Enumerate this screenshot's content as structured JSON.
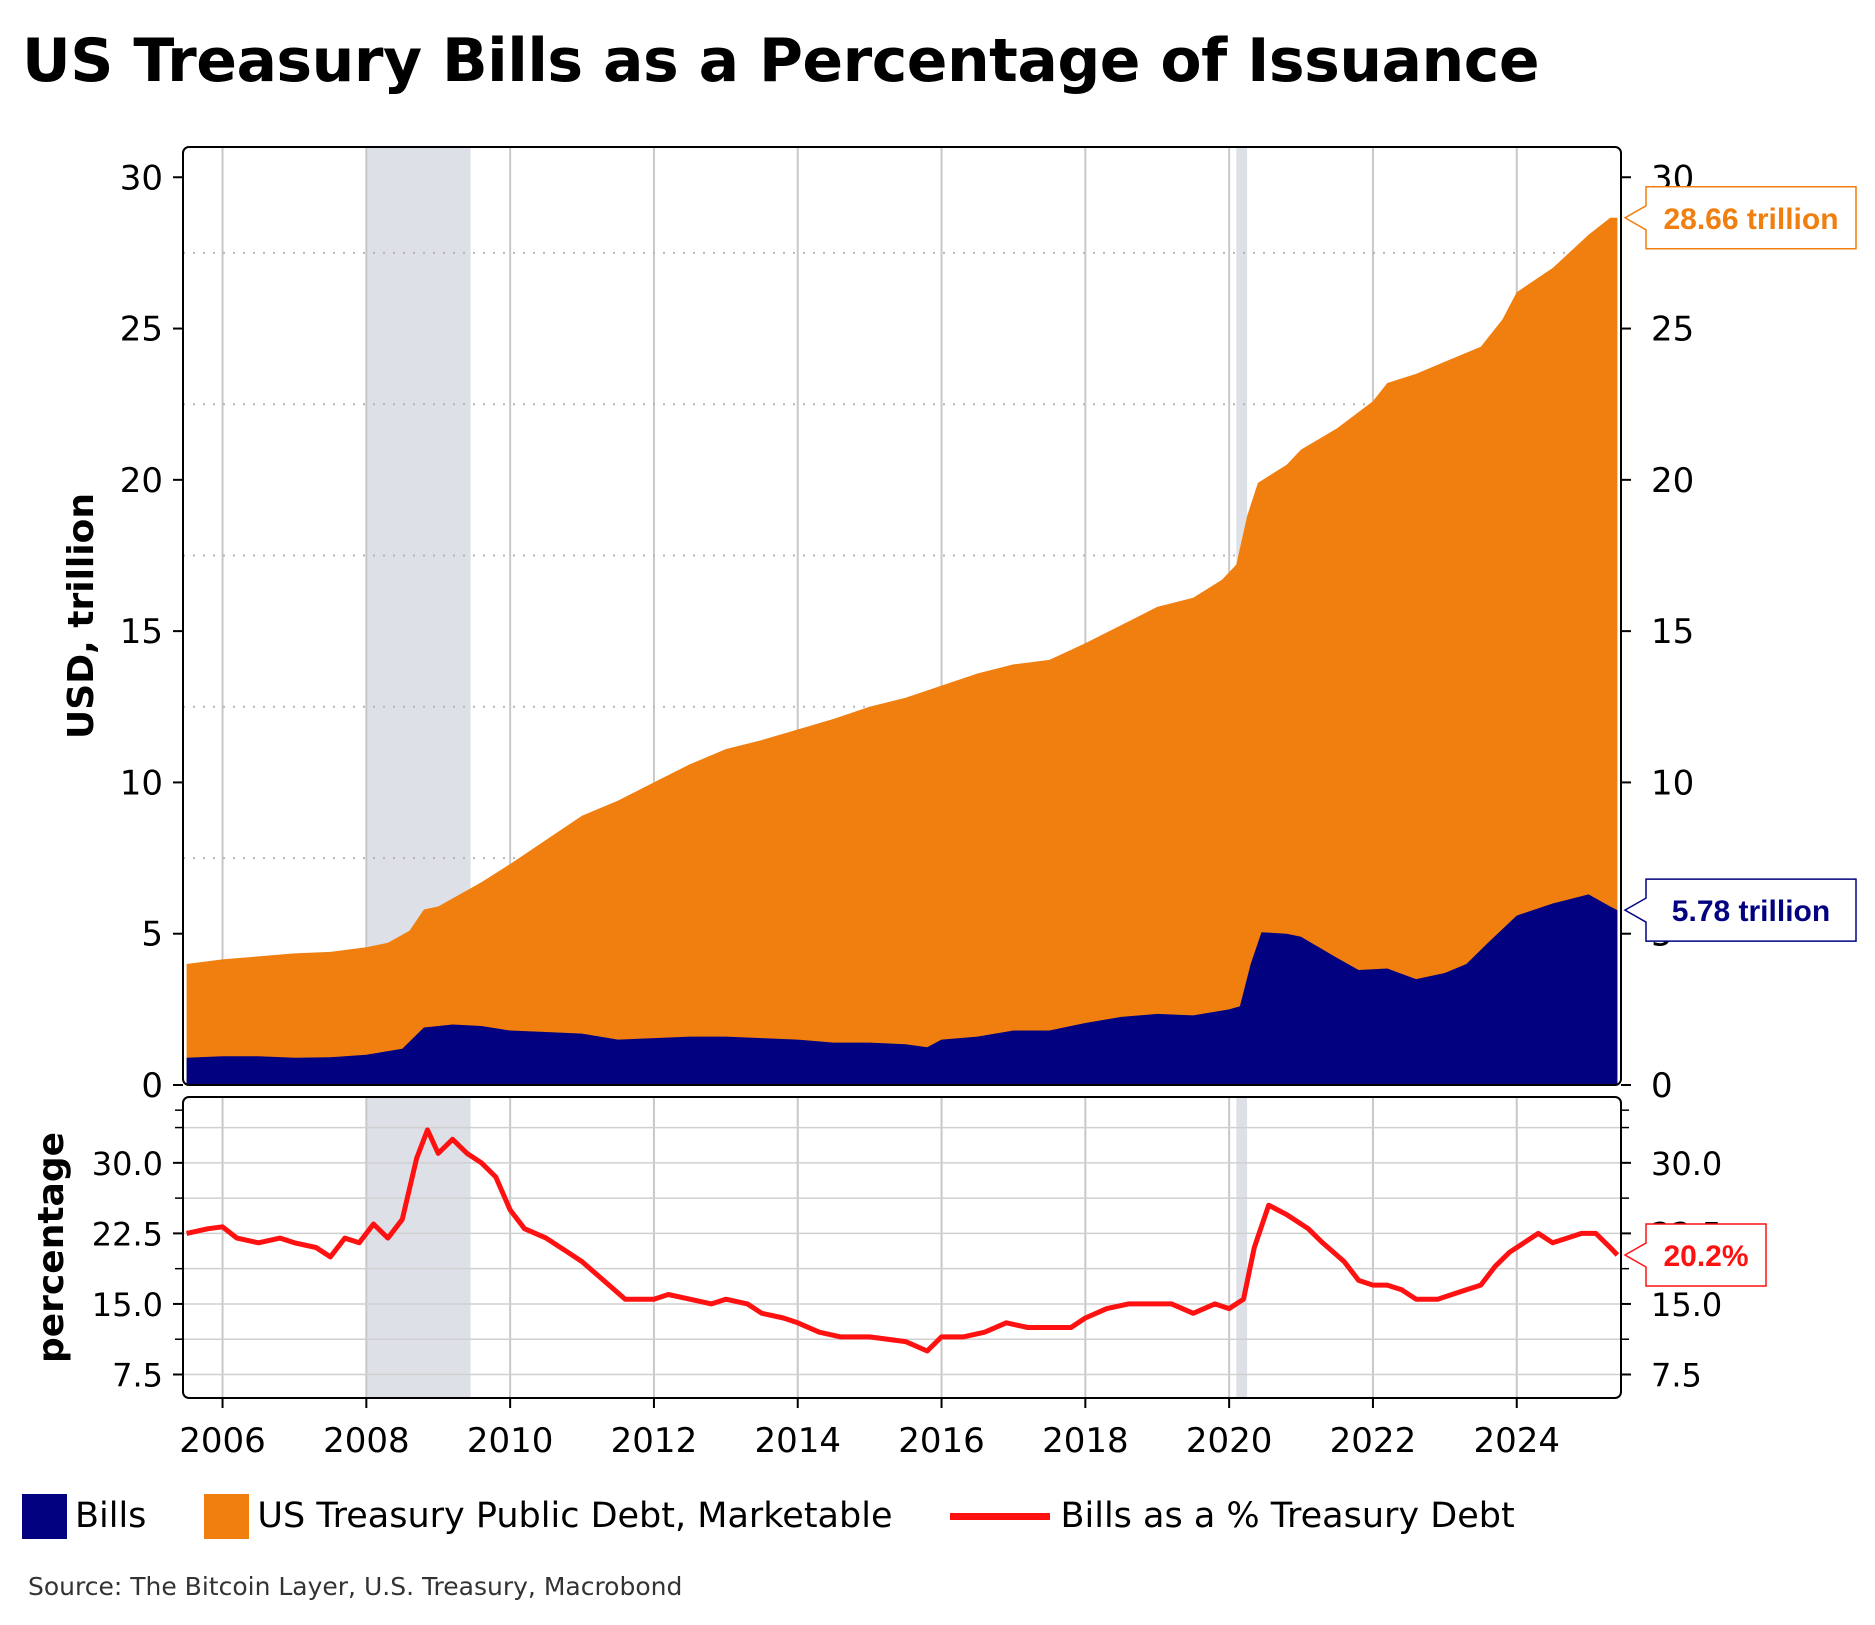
{
  "title": "US Treasury Bills as a Percentage of Issuance",
  "source": "Source: The Bitcoin Layer, U.S. Treasury, Macrobond",
  "colors": {
    "bills": "#020280",
    "debt": "#f07f0f",
    "pct": "#ff1111",
    "recession": "#dde0e6"
  },
  "legend": [
    {
      "label": "Bills",
      "kind": "box",
      "color": "#020280"
    },
    {
      "label": "US Treasury Public Debt, Marketable",
      "kind": "box",
      "color": "#f07f0f"
    },
    {
      "label": "Bills as a % Treasury Debt",
      "kind": "line",
      "color": "#ff1111"
    }
  ],
  "chart_data": [
    {
      "type": "area",
      "ylabel": "USD, trillion",
      "ylim": [
        0,
        31
      ],
      "yticks": [
        0,
        5,
        10,
        15,
        20,
        25,
        30
      ],
      "xlim": [
        2005.45,
        2025.45
      ],
      "xticks": [
        "2006",
        "2008",
        "2010",
        "2012",
        "2014",
        "2016",
        "2018",
        "2020",
        "2022",
        "2024"
      ],
      "recessions": [
        [
          2008.0,
          2009.45
        ],
        [
          2020.1,
          2020.25
        ]
      ],
      "series": [
        {
          "name": "US Treasury Public Debt, Marketable",
          "color": "#f07f0f",
          "points": [
            [
              2005.5,
              4.0
            ],
            [
              2006.0,
              4.15
            ],
            [
              2006.5,
              4.25
            ],
            [
              2007.0,
              4.35
            ],
            [
              2007.5,
              4.4
            ],
            [
              2008.0,
              4.55
            ],
            [
              2008.3,
              4.7
            ],
            [
              2008.6,
              5.1
            ],
            [
              2008.8,
              5.8
            ],
            [
              2009.0,
              5.9
            ],
            [
              2009.3,
              6.3
            ],
            [
              2009.6,
              6.7
            ],
            [
              2010.0,
              7.3
            ],
            [
              2010.5,
              8.1
            ],
            [
              2011.0,
              8.9
            ],
            [
              2011.5,
              9.4
            ],
            [
              2012.0,
              10.0
            ],
            [
              2012.5,
              10.6
            ],
            [
              2013.0,
              11.1
            ],
            [
              2013.5,
              11.4
            ],
            [
              2014.0,
              11.75
            ],
            [
              2014.5,
              12.1
            ],
            [
              2015.0,
              12.5
            ],
            [
              2015.5,
              12.8
            ],
            [
              2016.0,
              13.2
            ],
            [
              2016.5,
              13.6
            ],
            [
              2017.0,
              13.9
            ],
            [
              2017.5,
              14.05
            ],
            [
              2018.0,
              14.6
            ],
            [
              2018.5,
              15.2
            ],
            [
              2019.0,
              15.8
            ],
            [
              2019.5,
              16.1
            ],
            [
              2019.9,
              16.7
            ],
            [
              2020.1,
              17.2
            ],
            [
              2020.25,
              18.8
            ],
            [
              2020.4,
              19.9
            ],
            [
              2020.8,
              20.5
            ],
            [
              2021.0,
              21.0
            ],
            [
              2021.5,
              21.7
            ],
            [
              2022.0,
              22.6
            ],
            [
              2022.2,
              23.2
            ],
            [
              2022.6,
              23.5
            ],
            [
              2023.0,
              23.9
            ],
            [
              2023.5,
              24.4
            ],
            [
              2023.8,
              25.3
            ],
            [
              2024.0,
              26.2
            ],
            [
              2024.5,
              27.0
            ],
            [
              2025.0,
              28.1
            ],
            [
              2025.3,
              28.66
            ],
            [
              2025.4,
              28.66
            ]
          ]
        },
        {
          "name": "Bills",
          "color": "#020280",
          "points": [
            [
              2005.5,
              0.9
            ],
            [
              2006.0,
              0.95
            ],
            [
              2006.5,
              0.95
            ],
            [
              2007.0,
              0.9
            ],
            [
              2007.5,
              0.92
            ],
            [
              2008.0,
              1.0
            ],
            [
              2008.5,
              1.2
            ],
            [
              2008.8,
              1.9
            ],
            [
              2009.2,
              2.0
            ],
            [
              2009.6,
              1.95
            ],
            [
              2010.0,
              1.8
            ],
            [
              2010.5,
              1.75
            ],
            [
              2011.0,
              1.7
            ],
            [
              2011.5,
              1.5
            ],
            [
              2012.0,
              1.55
            ],
            [
              2012.5,
              1.6
            ],
            [
              2013.0,
              1.6
            ],
            [
              2013.5,
              1.55
            ],
            [
              2014.0,
              1.5
            ],
            [
              2014.5,
              1.4
            ],
            [
              2015.0,
              1.4
            ],
            [
              2015.5,
              1.35
            ],
            [
              2015.8,
              1.25
            ],
            [
              2016.0,
              1.5
            ],
            [
              2016.5,
              1.6
            ],
            [
              2017.0,
              1.8
            ],
            [
              2017.5,
              1.8
            ],
            [
              2018.0,
              2.05
            ],
            [
              2018.5,
              2.25
            ],
            [
              2019.0,
              2.35
            ],
            [
              2019.5,
              2.3
            ],
            [
              2020.0,
              2.5
            ],
            [
              2020.15,
              2.6
            ],
            [
              2020.3,
              4.0
            ],
            [
              2020.45,
              5.05
            ],
            [
              2020.8,
              5.0
            ],
            [
              2021.0,
              4.9
            ],
            [
              2021.5,
              4.2
            ],
            [
              2021.8,
              3.8
            ],
            [
              2022.2,
              3.85
            ],
            [
              2022.6,
              3.5
            ],
            [
              2023.0,
              3.7
            ],
            [
              2023.3,
              4.0
            ],
            [
              2023.6,
              4.7
            ],
            [
              2024.0,
              5.6
            ],
            [
              2024.5,
              6.0
            ],
            [
              2025.0,
              6.3
            ],
            [
              2025.3,
              5.9
            ],
            [
              2025.4,
              5.78
            ]
          ]
        }
      ],
      "annotations": [
        {
          "text": "28.66 trillion",
          "value": 28.66,
          "color": "#f07f0f"
        },
        {
          "text": "5.78 trillion",
          "value": 5.78,
          "color": "#020280"
        }
      ]
    },
    {
      "type": "line",
      "ylabel": "percentage",
      "ylim": [
        5,
        37
      ],
      "yticks": [
        7.5,
        15.0,
        22.5,
        30.0
      ],
      "ytick_labels": [
        "7.5",
        "15.0",
        "22.5",
        "30.0"
      ],
      "xlim": [
        2005.45,
        2025.45
      ],
      "series": [
        {
          "name": "Bills as a % Treasury Debt",
          "color": "#ff1111",
          "points": [
            [
              2005.5,
              22.5
            ],
            [
              2005.8,
              23.0
            ],
            [
              2006.0,
              23.2
            ],
            [
              2006.2,
              22.0
            ],
            [
              2006.5,
              21.5
            ],
            [
              2006.8,
              22.0
            ],
            [
              2007.0,
              21.5
            ],
            [
              2007.3,
              21.0
            ],
            [
              2007.5,
              20.0
            ],
            [
              2007.7,
              22.0
            ],
            [
              2007.9,
              21.5
            ],
            [
              2008.1,
              23.5
            ],
            [
              2008.3,
              22.0
            ],
            [
              2008.5,
              24.0
            ],
            [
              2008.7,
              30.5
            ],
            [
              2008.85,
              33.5
            ],
            [
              2009.0,
              31.0
            ],
            [
              2009.2,
              32.5
            ],
            [
              2009.4,
              31.0
            ],
            [
              2009.6,
              30.0
            ],
            [
              2009.8,
              28.5
            ],
            [
              2010.0,
              25.0
            ],
            [
              2010.2,
              23.0
            ],
            [
              2010.5,
              22.0
            ],
            [
              2010.8,
              20.5
            ],
            [
              2011.0,
              19.5
            ],
            [
              2011.3,
              17.5
            ],
            [
              2011.6,
              15.5
            ],
            [
              2012.0,
              15.5
            ],
            [
              2012.2,
              16.0
            ],
            [
              2012.5,
              15.5
            ],
            [
              2012.8,
              15.0
            ],
            [
              2013.0,
              15.5
            ],
            [
              2013.3,
              15.0
            ],
            [
              2013.5,
              14.0
            ],
            [
              2013.8,
              13.5
            ],
            [
              2014.0,
              13.0
            ],
            [
              2014.3,
              12.0
            ],
            [
              2014.6,
              11.5
            ],
            [
              2015.0,
              11.5
            ],
            [
              2015.5,
              11.0
            ],
            [
              2015.8,
              10.0
            ],
            [
              2016.0,
              11.5
            ],
            [
              2016.3,
              11.5
            ],
            [
              2016.6,
              12.0
            ],
            [
              2016.9,
              13.0
            ],
            [
              2017.2,
              12.5
            ],
            [
              2017.5,
              12.5
            ],
            [
              2017.8,
              12.5
            ],
            [
              2018.0,
              13.5
            ],
            [
              2018.3,
              14.5
            ],
            [
              2018.6,
              15.0
            ],
            [
              2018.9,
              15.0
            ],
            [
              2019.2,
              15.0
            ],
            [
              2019.5,
              14.0
            ],
            [
              2019.8,
              15.0
            ],
            [
              2020.0,
              14.5
            ],
            [
              2020.2,
              15.5
            ],
            [
              2020.35,
              21.0
            ],
            [
              2020.55,
              25.5
            ],
            [
              2020.8,
              24.5
            ],
            [
              2021.1,
              23.0
            ],
            [
              2021.3,
              21.5
            ],
            [
              2021.6,
              19.5
            ],
            [
              2021.8,
              17.5
            ],
            [
              2022.0,
              17.0
            ],
            [
              2022.2,
              17.0
            ],
            [
              2022.4,
              16.5
            ],
            [
              2022.6,
              15.5
            ],
            [
              2022.9,
              15.5
            ],
            [
              2023.1,
              16.0
            ],
            [
              2023.3,
              16.5
            ],
            [
              2023.5,
              17.0
            ],
            [
              2023.7,
              19.0
            ],
            [
              2023.9,
              20.5
            ],
            [
              2024.1,
              21.5
            ],
            [
              2024.3,
              22.5
            ],
            [
              2024.5,
              21.5
            ],
            [
              2024.7,
              22.0
            ],
            [
              2024.9,
              22.5
            ],
            [
              2025.1,
              22.5
            ],
            [
              2025.3,
              21.0
            ],
            [
              2025.4,
              20.2
            ]
          ]
        }
      ],
      "annotations": [
        {
          "text": "20.2%",
          "value": 20.2,
          "color": "#ff1111"
        }
      ]
    }
  ]
}
